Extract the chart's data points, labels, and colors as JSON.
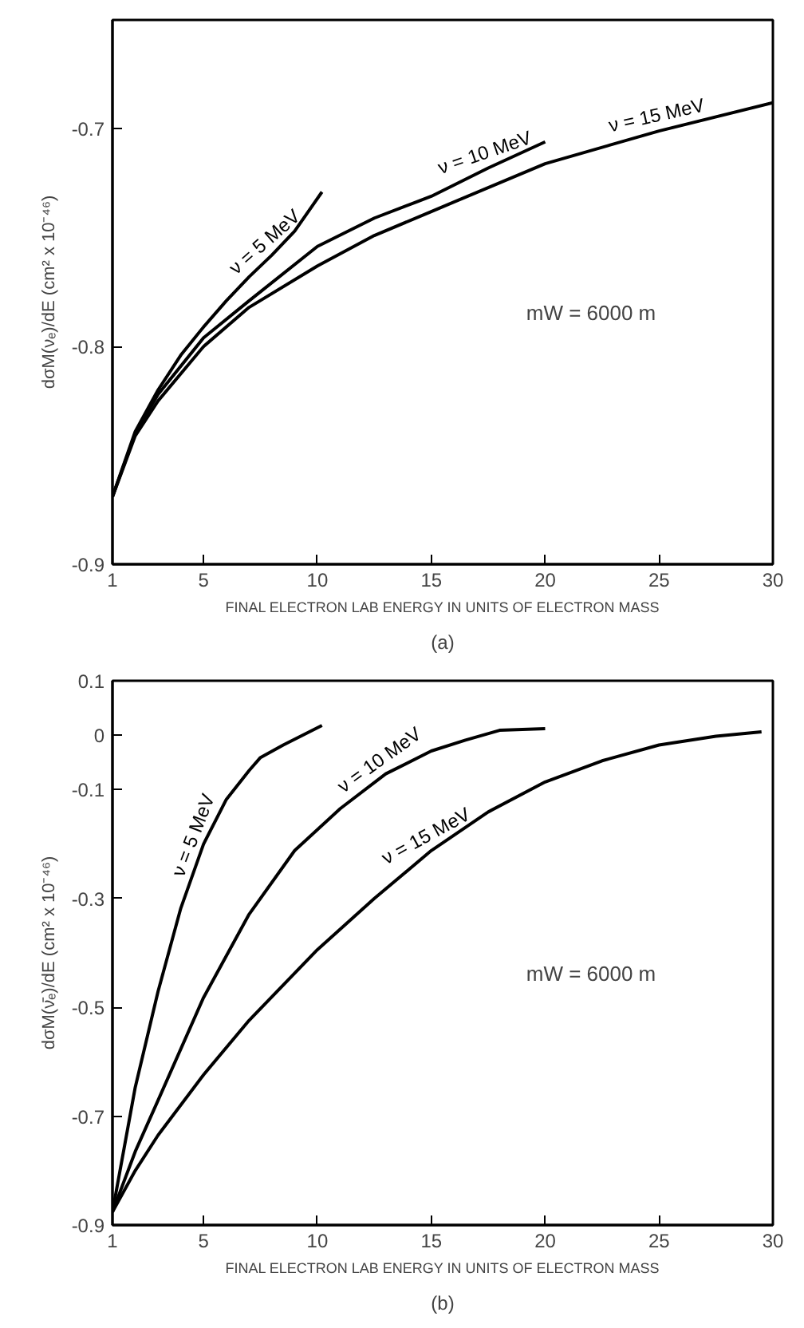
{
  "chart_data": [
    {
      "type": "line",
      "xlabel": "FINAL ELECTRON LAB ENERGY IN UNITS OF ELECTRON MASS",
      "ylabel": "dσM(νₑ)/dE (cm² x 10⁻⁴⁶)",
      "xlim": [
        1,
        30
      ],
      "ylim": [
        -0.9,
        -0.65
      ],
      "xticks": [
        1,
        5,
        10,
        15,
        20,
        25,
        30
      ],
      "yticks": [
        -0.9,
        -0.8,
        -0.7
      ],
      "grid": false,
      "legend": false,
      "color": "#000000",
      "series": [
        {
          "name": "ν = 5 MeV",
          "x": [
            1,
            2,
            3,
            4,
            5,
            6,
            7,
            8,
            9,
            10.2
          ],
          "values": [
            -0.869,
            -0.839,
            -0.82,
            -0.804,
            -0.791,
            -0.779,
            -0.768,
            -0.758,
            -0.747,
            -0.729
          ]
        },
        {
          "name": "ν = 10 MeV",
          "x": [
            1,
            2,
            3,
            5,
            7,
            10,
            12.5,
            15,
            17.5,
            20
          ],
          "values": [
            -0.869,
            -0.84,
            -0.822,
            -0.796,
            -0.779,
            -0.754,
            -0.741,
            -0.731,
            -0.718,
            -0.706
          ]
        },
        {
          "name": "ν = 15 MeV",
          "x": [
            1,
            2,
            3,
            5,
            7,
            10,
            12.5,
            15,
            20,
            25,
            30
          ],
          "values": [
            -0.869,
            -0.841,
            -0.825,
            -0.8,
            -0.782,
            -0.763,
            -0.749,
            -0.738,
            -0.716,
            -0.701,
            -0.688
          ]
        }
      ],
      "annotations": [
        "mW = 6000 m",
        "(a)"
      ]
    },
    {
      "type": "line",
      "xlabel": "FINAL ELECTRON LAB ENERGY IN UNITS OF ELECTRON MASS",
      "ylabel": "dσM(ν̄ₑ)/dE (cm² x 10⁻⁴⁶)",
      "xlim": [
        1,
        30
      ],
      "ylim": [
        -0.9,
        0.1
      ],
      "xticks": [
        1,
        5,
        10,
        15,
        20,
        25,
        30
      ],
      "yticks": [
        -0.9,
        -0.7,
        -0.5,
        -0.3,
        -0.1,
        0,
        0.1
      ],
      "grid": false,
      "legend": false,
      "color": "#000000",
      "series": [
        {
          "name": "ν = 5 MeV",
          "x": [
            1,
            2,
            3,
            4,
            5,
            6,
            7,
            7.5,
            8.5,
            10.2
          ],
          "values": [
            -0.876,
            -0.647,
            -0.471,
            -0.318,
            -0.2,
            -0.118,
            -0.065,
            -0.041,
            -0.018,
            0.018
          ]
        },
        {
          "name": "ν = 10 MeV",
          "x": [
            1,
            2,
            3,
            5,
            7,
            9,
            11,
            13,
            15,
            16.5,
            18,
            20
          ],
          "values": [
            -0.876,
            -0.765,
            -0.671,
            -0.482,
            -0.329,
            -0.212,
            -0.135,
            -0.071,
            -0.029,
            -0.009,
            0.009,
            0.012
          ]
        },
        {
          "name": "ν = 15 MeV",
          "x": [
            1,
            2,
            3,
            5,
            7,
            10,
            12.5,
            15,
            17.5,
            20,
            22.5,
            25,
            27.5,
            29.5
          ],
          "values": [
            -0.876,
            -0.8,
            -0.735,
            -0.624,
            -0.524,
            -0.394,
            -0.3,
            -0.212,
            -0.141,
            -0.086,
            -0.047,
            -0.018,
            -0.002,
            0.006
          ]
        }
      ],
      "annotations": [
        "mW = 6000 m",
        "(b)"
      ]
    }
  ]
}
